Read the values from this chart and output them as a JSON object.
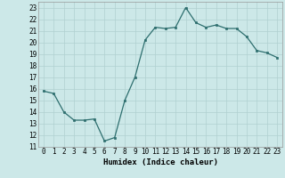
{
  "x": [
    0,
    1,
    2,
    3,
    4,
    5,
    6,
    7,
    8,
    9,
    10,
    11,
    12,
    13,
    14,
    15,
    16,
    17,
    18,
    19,
    20,
    21,
    22,
    23
  ],
  "y": [
    15.8,
    15.6,
    14.0,
    13.3,
    13.3,
    13.4,
    11.5,
    11.8,
    15.0,
    17.0,
    20.2,
    21.3,
    21.2,
    21.3,
    23.0,
    21.7,
    21.3,
    21.5,
    21.2,
    21.2,
    20.5,
    19.3,
    19.1,
    18.7
  ],
  "title": "",
  "xlabel": "Humidex (Indice chaleur)",
  "ylabel": "",
  "xlim": [
    -0.5,
    23.5
  ],
  "ylim": [
    11,
    23.5
  ],
  "yticks": [
    11,
    12,
    13,
    14,
    15,
    16,
    17,
    18,
    19,
    20,
    21,
    22,
    23
  ],
  "xticks": [
    0,
    1,
    2,
    3,
    4,
    5,
    6,
    7,
    8,
    9,
    10,
    11,
    12,
    13,
    14,
    15,
    16,
    17,
    18,
    19,
    20,
    21,
    22,
    23
  ],
  "line_color": "#2d6e6e",
  "marker_color": "#2d6e6e",
  "bg_color": "#cce8e8",
  "grid_color": "#b0d0d0",
  "label_fontsize": 6.5,
  "tick_fontsize": 5.5
}
